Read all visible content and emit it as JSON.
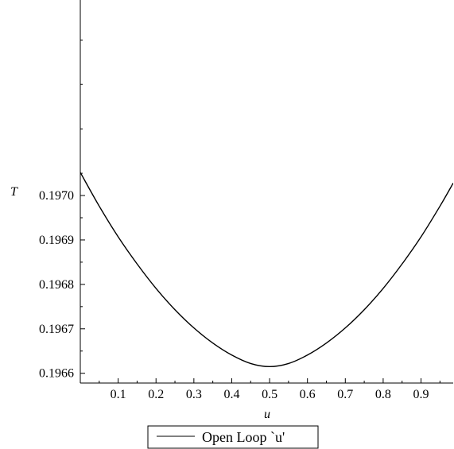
{
  "chart_data": {
    "type": "line",
    "title": "",
    "xlabel": "u",
    "ylabel": "T",
    "xlim": [
      0.0,
      0.985
    ],
    "ylim": [
      0.196578,
      0.19744
    ],
    "x_ticks": [
      0.1,
      0.2,
      0.3,
      0.4,
      0.5,
      0.6,
      0.7,
      0.8,
      0.9
    ],
    "x_tick_labels": [
      "0.1",
      "0.2",
      "0.3",
      "0.4",
      "0.5",
      "0.6",
      "0.7",
      "0.8",
      "0.9"
    ],
    "y_ticks": [
      0.1966,
      0.1967,
      0.1968,
      0.1969,
      0.197
    ],
    "y_tick_labels": [
      "0.1966",
      "0.1967",
      "0.1968",
      "0.1969",
      "0.1970"
    ],
    "grid": false,
    "legend_position": "bottom-center",
    "series": [
      {
        "name": "Open Loop `u'",
        "color": "#000000",
        "x": [
          0.0,
          0.05,
          0.1,
          0.15,
          0.2,
          0.25,
          0.3,
          0.35,
          0.4,
          0.45,
          0.5,
          0.55,
          0.6,
          0.65,
          0.7,
          0.75,
          0.8,
          0.85,
          0.9,
          0.95,
          0.985
        ],
        "y": [
          0.197052,
          0.196976,
          0.196907,
          0.196846,
          0.196791,
          0.196743,
          0.196702,
          0.196668,
          0.196641,
          0.196622,
          0.196615,
          0.196622,
          0.196641,
          0.196668,
          0.196702,
          0.196743,
          0.196791,
          0.196846,
          0.196907,
          0.196976,
          0.197028
        ]
      }
    ]
  }
}
